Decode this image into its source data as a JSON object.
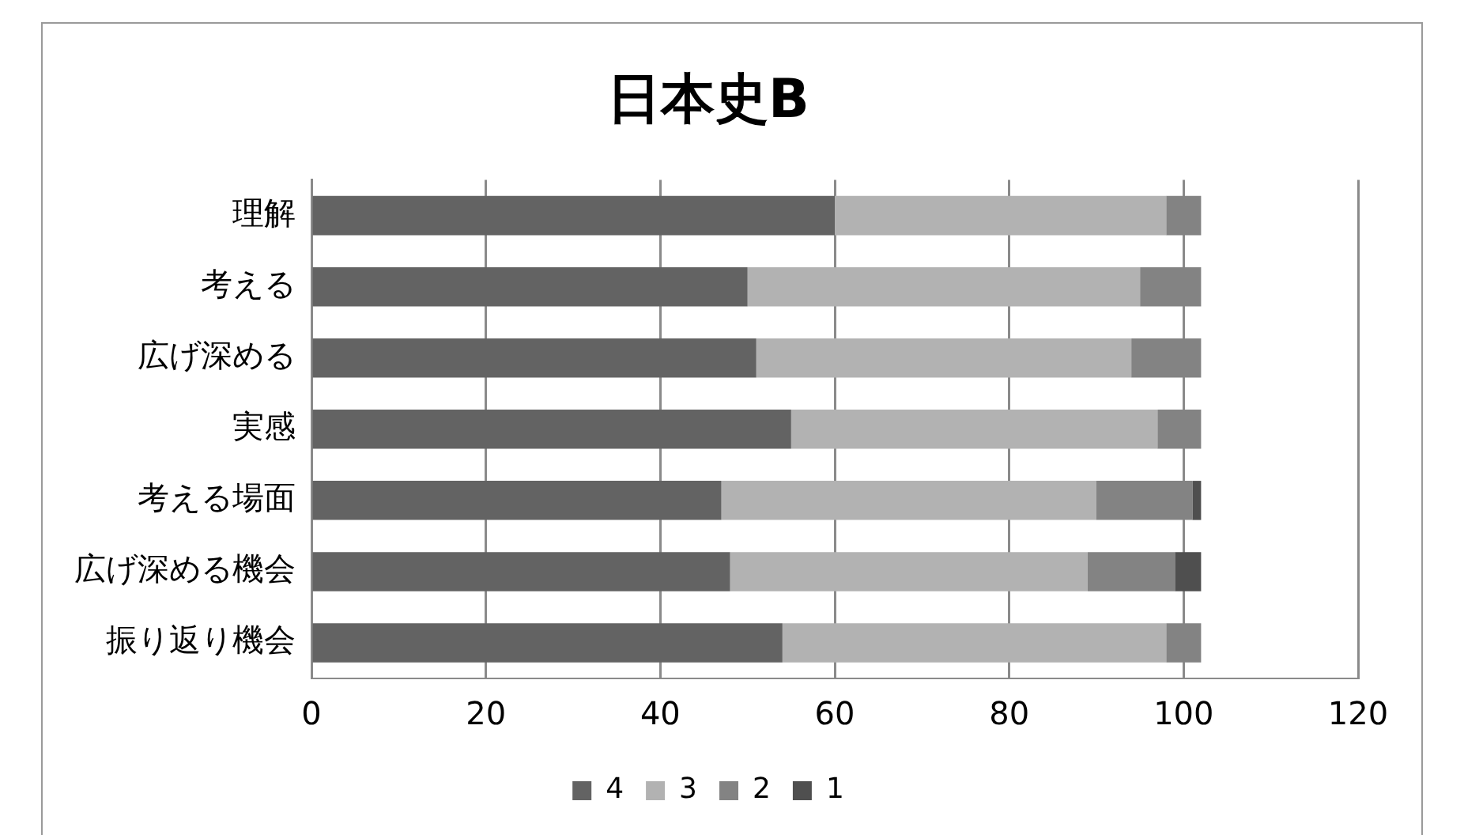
{
  "chart_data": {
    "type": "bar",
    "title": "日本史B",
    "orientation": "horizontal",
    "stacked": true,
    "categories": [
      "理解",
      "考える",
      "広げ深める",
      "実感",
      "考える場面",
      "広げ深める機会",
      "振り返り機会"
    ],
    "series": [
      {
        "name": "4",
        "color": "#636363",
        "values": [
          60,
          50,
          51,
          55,
          47,
          48,
          54
        ]
      },
      {
        "name": "3",
        "color": "#b2b2b2",
        "values": [
          38,
          45,
          43,
          42,
          43,
          41,
          44
        ]
      },
      {
        "name": "2",
        "color": "#838383",
        "values": [
          4,
          7,
          8,
          5,
          11,
          10,
          4
        ]
      },
      {
        "name": "1",
        "color": "#4f4f4f",
        "values": [
          null,
          null,
          null,
          null,
          1,
          3,
          null
        ]
      }
    ],
    "xlim": [
      0,
      120
    ],
    "xticks": [
      0,
      20,
      40,
      60,
      80,
      100,
      120
    ],
    "grid": "x",
    "legend": "bottom"
  }
}
